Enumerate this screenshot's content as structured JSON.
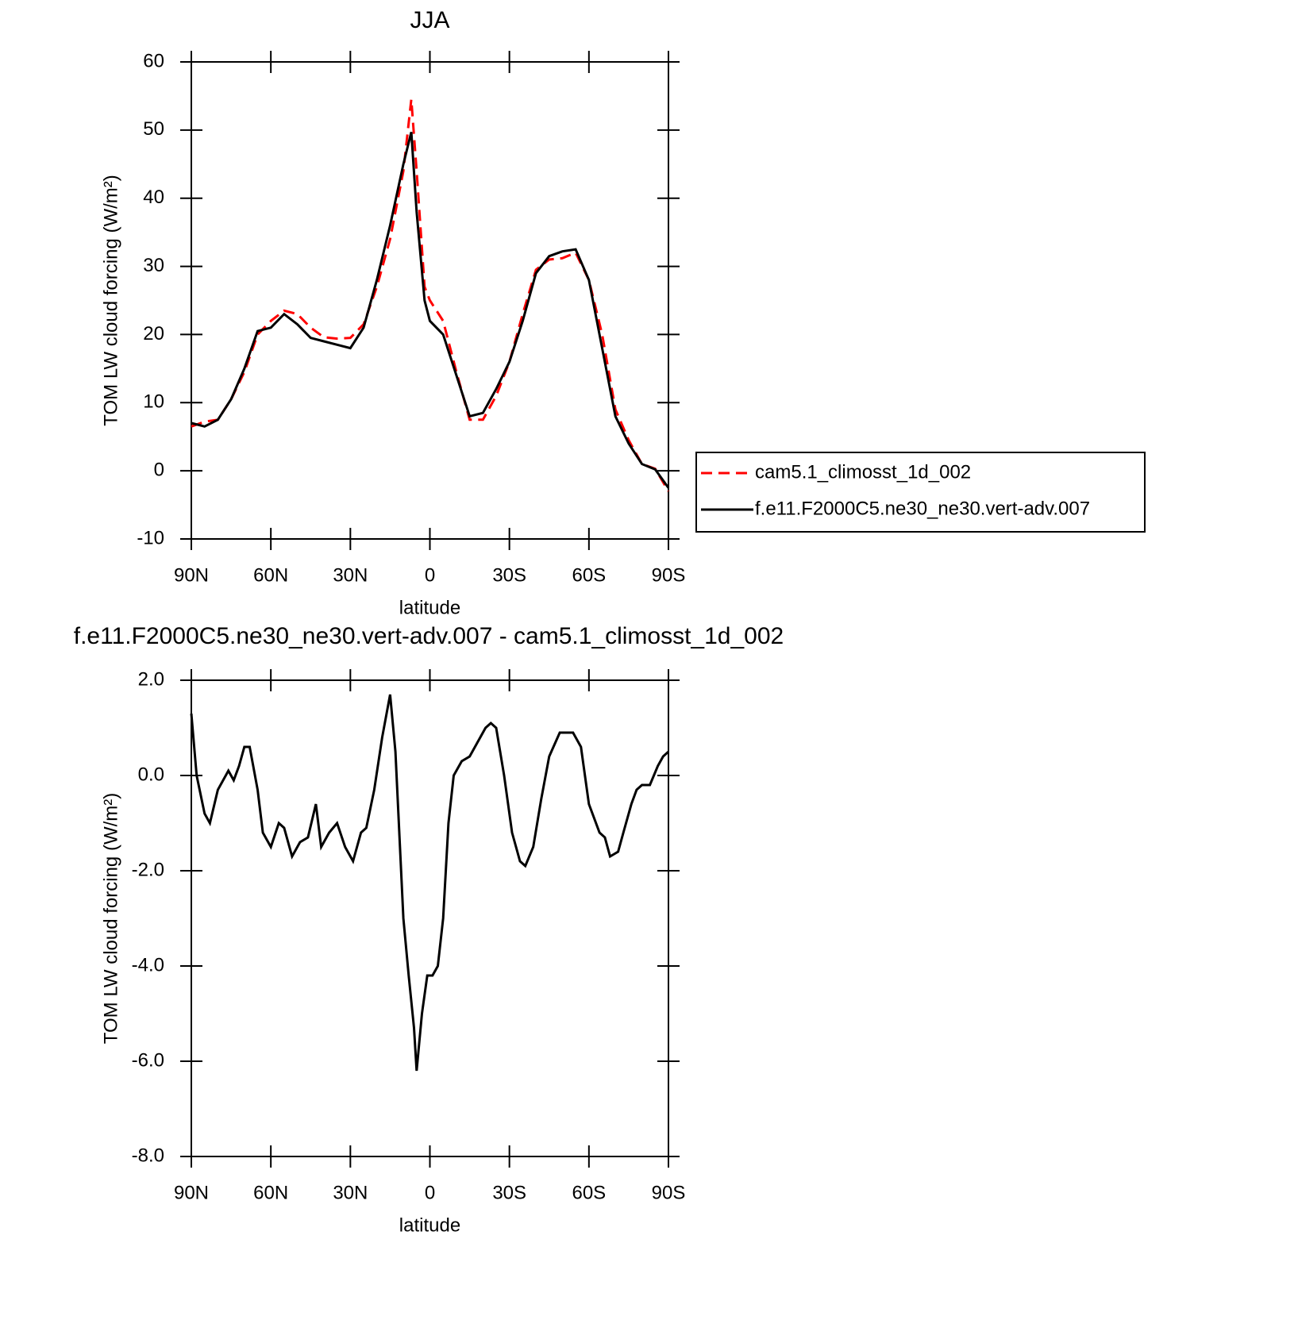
{
  "chart_data": [
    {
      "type": "line",
      "title": "JJA",
      "xlabel": "latitude",
      "ylabel": "TOM LW cloud forcing (W/m²)",
      "xlim": [
        90,
        -90
      ],
      "xticks": [
        {
          "value": 90,
          "label": "90N"
        },
        {
          "value": 60,
          "label": "60N"
        },
        {
          "value": 30,
          "label": "30N"
        },
        0,
        {
          "value": -30,
          "label": "30S"
        },
        {
          "value": -60,
          "label": "60S"
        },
        {
          "value": -90,
          "label": "90S"
        }
      ],
      "ylim": [
        -10,
        60
      ],
      "yticks": [
        -10,
        0,
        10,
        20,
        30,
        40,
        50,
        60
      ],
      "legend": "right",
      "x": [
        90,
        85,
        80,
        75,
        70,
        65,
        60,
        55,
        50,
        45,
        40,
        35,
        30,
        25,
        20,
        15,
        10,
        7,
        5,
        2,
        0,
        -5,
        -10,
        -15,
        -20,
        -25,
        -30,
        -35,
        -40,
        -45,
        -50,
        -55,
        -60,
        -65,
        -70,
        -75,
        -80,
        -85,
        -90
      ],
      "series": [
        {
          "name": "cam5.1_climosst_1d_002",
          "color": "#ff0000",
          "style": "dashed",
          "values": [
            6.5,
            7.2,
            7.5,
            10.5,
            14.5,
            20,
            22,
            23.5,
            23,
            21,
            19.6,
            19.4,
            19.5,
            21.5,
            27,
            34,
            44,
            54.5,
            44,
            27,
            25,
            22,
            14.5,
            7.5,
            7.5,
            11,
            16,
            23,
            29.5,
            31,
            31.2,
            32,
            28,
            20,
            9,
            4.5,
            1,
            0.3,
            -3
          ]
        },
        {
          "name": "f.e11.F2000C5.ne30_ne30.vert-adv.007",
          "color": "#000000",
          "style": "solid",
          "values": [
            7,
            6.5,
            7.5,
            10.5,
            15,
            20.5,
            21,
            23,
            21.5,
            19.5,
            19,
            18.5,
            18,
            21,
            28,
            36,
            45,
            49.7,
            38,
            25,
            22,
            20,
            14,
            8,
            8.5,
            12,
            16,
            22,
            29,
            31.5,
            32.2,
            32.5,
            28,
            18,
            8,
            4,
            1,
            0.2,
            -2.5
          ]
        }
      ]
    },
    {
      "type": "line",
      "title": "f.e11.F2000C5.ne30_ne30.vert-adv.007 - cam5.1_climosst_1d_002",
      "xlabel": "latitude",
      "ylabel": "TOM LW cloud forcing (W/m²)",
      "xlim": [
        90,
        -90
      ],
      "xticks": [
        {
          "value": 90,
          "label": "90N"
        },
        {
          "value": 60,
          "label": "60N"
        },
        {
          "value": 30,
          "label": "30N"
        },
        0,
        {
          "value": -30,
          "label": "30S"
        },
        {
          "value": -60,
          "label": "60S"
        },
        {
          "value": -90,
          "label": "90S"
        }
      ],
      "ylim": [
        -8,
        2
      ],
      "yticks": [
        {
          "value": -8,
          "label": "-8.0"
        },
        {
          "value": -6,
          "label": "-6.0"
        },
        {
          "value": -4,
          "label": "-4.0"
        },
        {
          "value": -2,
          "label": "-2.0"
        },
        {
          "value": 0,
          "label": "0.0"
        },
        {
          "value": 2,
          "label": "2.0"
        }
      ],
      "x": [
        90,
        88,
        85,
        83,
        80,
        76,
        74,
        72,
        70,
        68,
        65,
        63,
        60,
        57,
        55,
        52,
        49,
        46,
        43,
        41,
        38,
        35,
        32,
        29,
        26,
        24,
        21,
        18,
        15,
        13,
        10,
        8,
        6,
        5,
        3,
        1,
        -1,
        -3,
        -5,
        -7,
        -9,
        -12,
        -15,
        -18,
        -21,
        -23,
        -25,
        -28,
        -31,
        -34,
        -36,
        -39,
        -42,
        -45,
        -49,
        -51,
        -54,
        -57,
        -60,
        -64,
        -66,
        -68,
        -71,
        -73,
        -76,
        -78,
        -80,
        -83,
        -86,
        -88,
        -90
      ],
      "series": [
        {
          "color": "#000000",
          "style": "solid",
          "values": [
            1.3,
            0,
            -0.8,
            -1,
            -0.3,
            0.1,
            -0.1,
            0.2,
            0.6,
            0.6,
            -0.3,
            -1.2,
            -1.5,
            -1.0,
            -1.1,
            -1.7,
            -1.4,
            -1.3,
            -0.6,
            -1.5,
            -1.2,
            -1.0,
            -1.5,
            -1.8,
            -1.2,
            -1.1,
            -0.3,
            0.8,
            1.7,
            0.5,
            -3.0,
            -4.2,
            -5.3,
            -6.2,
            -5.0,
            -4.2,
            -4.2,
            -4.0,
            -3.0,
            -1.0,
            0.0,
            0.3,
            0.4,
            0.7,
            1.0,
            1.1,
            1.0,
            0.0,
            -1.2,
            -1.8,
            -1.9,
            -1.5,
            -0.5,
            0.4,
            0.9,
            0.9,
            0.9,
            0.6,
            -0.6,
            -1.2,
            -1.3,
            -1.7,
            -1.6,
            -1.2,
            -0.6,
            -0.3,
            -0.2,
            -0.2,
            0.2,
            0.4,
            0.5
          ]
        }
      ]
    }
  ]
}
